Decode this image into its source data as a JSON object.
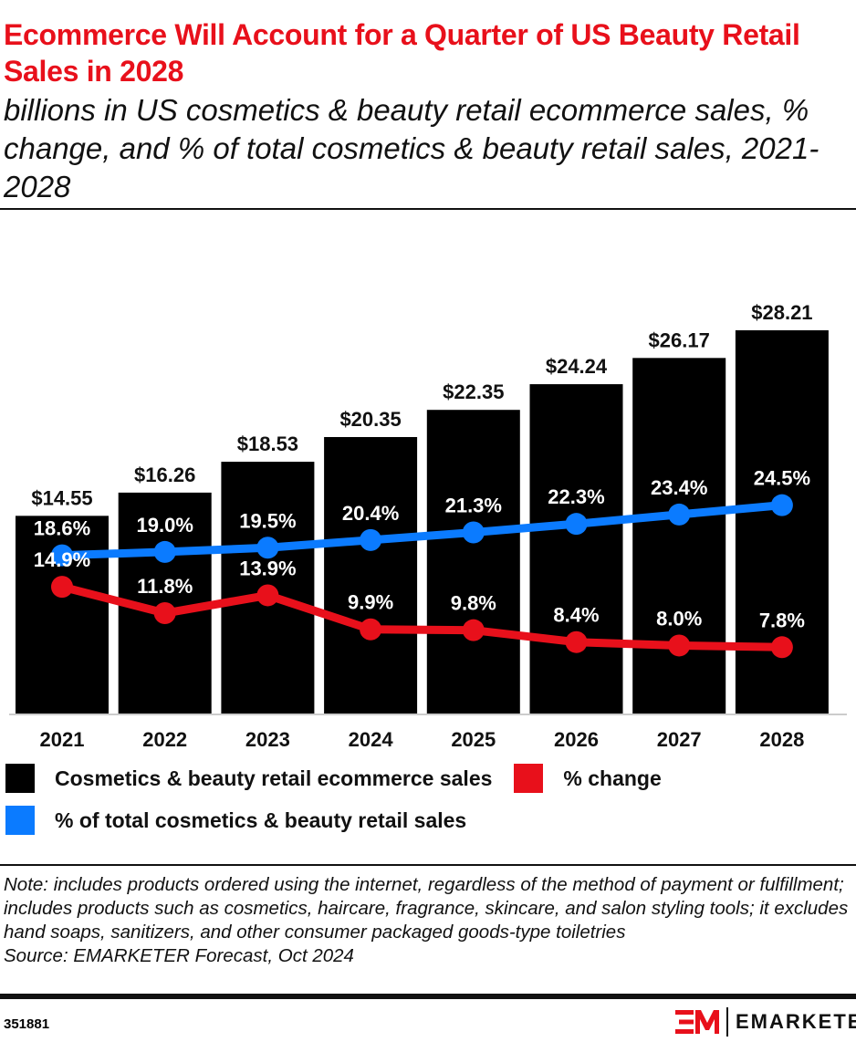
{
  "header": {
    "title": "Ecommerce Will Account for a Quarter of US Beauty Retail Sales in 2028",
    "subtitle": "billions in US cosmetics & beauty retail ecommerce sales, % change, and % of total cosmetics & beauty retail sales, 2021-2028"
  },
  "chart_data": {
    "type": "bar",
    "categories": [
      "2021",
      "2022",
      "2023",
      "2024",
      "2025",
      "2026",
      "2027",
      "2028"
    ],
    "series": [
      {
        "name": "Cosmetics & beauty retail ecommerce sales",
        "type": "bar",
        "color": "#000000",
        "values": [
          14.55,
          16.26,
          18.53,
          20.35,
          22.35,
          24.24,
          26.17,
          28.21
        ],
        "labels": [
          "$14.55",
          "$16.26",
          "$18.53",
          "$20.35",
          "$22.35",
          "$24.24",
          "$26.17",
          "$28.21"
        ]
      },
      {
        "name": "% change",
        "type": "line",
        "color": "#e8101b",
        "values": [
          14.9,
          11.8,
          13.9,
          9.9,
          9.8,
          8.4,
          8.0,
          7.8
        ],
        "labels": [
          "14.9%",
          "11.8%",
          "13.9%",
          "9.9%",
          "9.8%",
          "8.4%",
          "8.0%",
          "7.8%"
        ]
      },
      {
        "name": "% of total cosmetics & beauty retail sales",
        "type": "line",
        "color": "#0b7bff",
        "values": [
          18.6,
          19.0,
          19.5,
          20.4,
          21.3,
          22.3,
          23.4,
          24.5
        ],
        "labels": [
          "18.6%",
          "19.0%",
          "19.5%",
          "20.4%",
          "21.3%",
          "22.3%",
          "23.4%",
          "24.5%"
        ]
      }
    ],
    "grid": false,
    "legend_position": "bottom"
  },
  "legend": [
    {
      "label": "Cosmetics & beauty retail ecommerce sales",
      "color": "#000000"
    },
    {
      "label": "% change",
      "color": "#e8101b"
    },
    {
      "label": "% of total cosmetics & beauty retail sales",
      "color": "#0b7bff"
    }
  ],
  "footer": {
    "note": "Note: includes products ordered using the internet, regardless of the method of payment or fulfillment; includes products such as cosmetics, haircare, fragrance, skincare, and salon styling tools; it excludes hand soaps, sanitizers, and other consumer packaged goods-type toiletries",
    "source": "Source: EMARKETER Forecast, Oct 2024",
    "id": "351881",
    "brand": "EMARKETER",
    "logo_mark": "EM"
  }
}
